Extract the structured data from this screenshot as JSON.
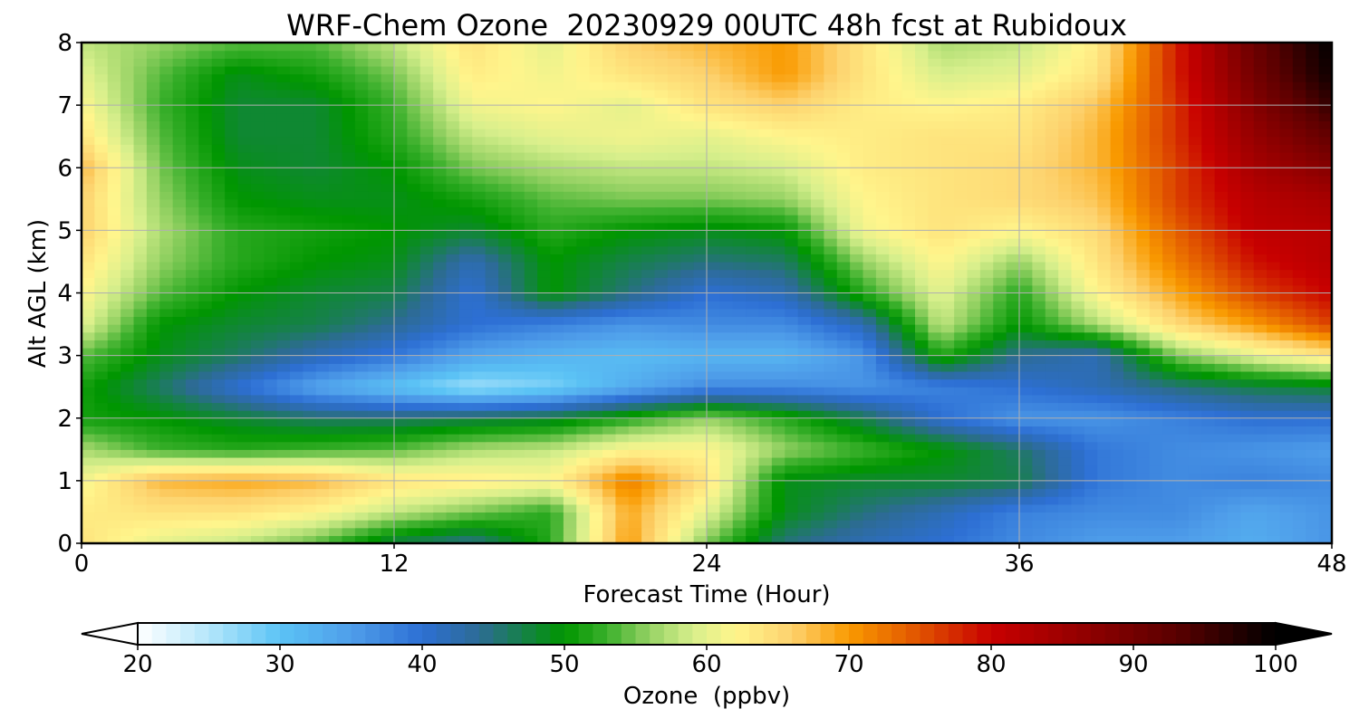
{
  "chart_data": {
    "type": "heatmap",
    "title": "WRF-Chem Ozone  20230929 00UTC 48h fcst at Rubidoux",
    "xlabel": "Forecast Time (Hour)",
    "ylabel": "Alt AGL (km)",
    "xlim": [
      0,
      48
    ],
    "ylim": [
      0,
      8
    ],
    "xticks": [
      0,
      12,
      24,
      36,
      48
    ],
    "yticks": [
      0,
      1,
      2,
      3,
      4,
      5,
      6,
      7,
      8
    ],
    "grid": true,
    "x": [
      0,
      3,
      6,
      9,
      12,
      15,
      18,
      21,
      24,
      27,
      30,
      33,
      36,
      39,
      42,
      45,
      48
    ],
    "y": [
      0,
      0.5,
      1,
      1.5,
      2,
      2.5,
      3,
      3.5,
      4,
      4.5,
      5,
      5.5,
      6,
      6.5,
      7,
      7.5,
      8
    ],
    "z": [
      [
        64,
        60,
        58,
        54,
        47,
        44,
        52,
        70,
        55,
        45,
        42,
        40,
        37,
        35,
        35,
        33,
        36
      ],
      [
        63,
        64,
        64,
        62,
        58,
        55,
        52,
        69,
        60,
        49,
        45,
        42,
        38,
        37,
        37,
        34,
        36
      ],
      [
        61,
        68,
        69,
        68,
        64,
        63,
        62,
        72,
        64,
        49,
        48,
        48,
        47,
        39,
        37,
        38,
        37
      ],
      [
        57,
        53,
        52,
        53,
        54,
        57,
        58,
        62,
        62,
        56,
        53,
        50,
        46,
        39,
        37,
        36,
        35
      ],
      [
        51,
        50,
        48,
        46,
        46,
        47,
        48,
        52,
        56,
        52,
        47,
        40,
        36,
        36,
        38,
        40,
        40
      ],
      [
        51,
        46,
        40,
        34,
        30,
        26,
        28,
        33,
        37,
        37,
        36,
        38,
        40,
        42,
        45,
        47,
        48
      ],
      [
        54,
        49,
        46,
        42,
        39,
        34,
        32,
        31,
        32,
        32,
        36,
        52,
        44,
        42,
        55,
        60,
        64
      ],
      [
        60,
        50,
        48,
        47,
        44,
        40,
        38,
        36,
        37,
        37,
        42,
        58,
        50,
        57,
        65,
        70,
        76
      ],
      [
        62,
        54,
        50,
        48,
        47,
        40,
        50,
        45,
        40,
        42,
        52,
        60,
        52,
        62,
        69,
        76,
        80
      ],
      [
        64,
        56,
        52,
        50,
        49,
        42,
        50,
        47,
        45,
        46,
        56,
        62,
        56,
        64,
        72,
        79,
        82
      ],
      [
        66,
        57,
        52,
        51,
        50,
        48,
        52,
        50,
        49,
        50,
        61,
        64,
        62,
        65,
        74,
        81,
        82
      ],
      [
        66,
        56,
        50,
        49,
        49,
        51,
        54,
        55,
        55,
        56,
        62,
        64,
        65,
        67,
        76,
        82,
        84
      ],
      [
        68,
        55,
        49,
        48,
        50,
        55,
        57,
        58,
        58,
        59,
        63,
        64,
        65,
        68,
        76,
        84,
        88
      ],
      [
        64,
        54,
        48,
        48,
        52,
        58,
        60,
        61,
        60,
        62,
        63,
        64,
        64,
        68,
        77,
        86,
        92
      ],
      [
        62,
        53,
        48,
        48,
        53,
        61,
        62,
        60,
        64,
        66,
        63,
        62,
        63,
        67,
        77,
        88,
        96
      ],
      [
        60,
        54,
        49,
        51,
        55,
        63,
        61,
        64,
        66,
        70,
        64,
        59,
        60,
        64,
        78,
        90,
        99
      ],
      [
        58,
        56,
        54,
        54,
        58,
        64,
        60,
        66,
        68,
        70,
        64,
        57,
        58,
        63,
        78,
        91,
        100
      ]
    ],
    "colorbar": {
      "label": "Ozone  (ppbv)",
      "range": [
        20,
        100
      ],
      "ticks": [
        20,
        30,
        40,
        50,
        60,
        70,
        80,
        90,
        100
      ],
      "extend": "both",
      "colors": [
        {
          "v": 20,
          "c": "#ffffff"
        },
        {
          "v": 25,
          "c": "#b4e6fa"
        },
        {
          "v": 30,
          "c": "#5bc3f5"
        },
        {
          "v": 35,
          "c": "#4f9eea"
        },
        {
          "v": 40,
          "c": "#2d6fd4"
        },
        {
          "v": 44,
          "c": "#2d6b95"
        },
        {
          "v": 50,
          "c": "#009600"
        },
        {
          "v": 53,
          "c": "#3bb02c"
        },
        {
          "v": 56,
          "c": "#96d264"
        },
        {
          "v": 59,
          "c": "#d7ef8c"
        },
        {
          "v": 62,
          "c": "#fff58c"
        },
        {
          "v": 66,
          "c": "#fdd26e"
        },
        {
          "v": 70,
          "c": "#f99a00"
        },
        {
          "v": 75,
          "c": "#e05200"
        },
        {
          "v": 80,
          "c": "#c80000"
        },
        {
          "v": 86,
          "c": "#960000"
        },
        {
          "v": 93,
          "c": "#5a0000"
        },
        {
          "v": 100,
          "c": "#000000"
        }
      ]
    }
  }
}
